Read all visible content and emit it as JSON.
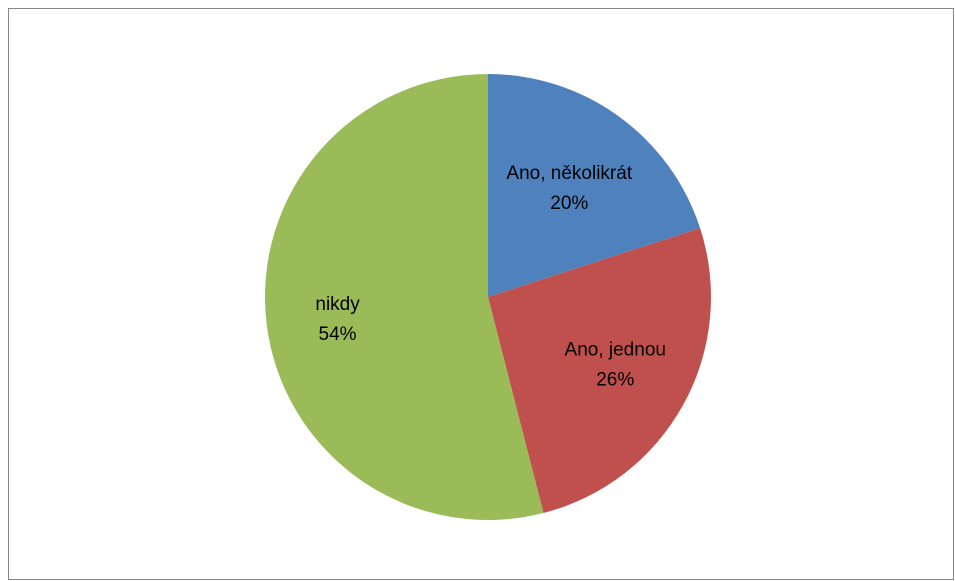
{
  "chart_data": {
    "type": "pie",
    "categories": [
      "Ano, několikrát",
      "Ano, jednou",
      "nikdy"
    ],
    "values": [
      20,
      26,
      54
    ],
    "value_labels": [
      "20%",
      "26%",
      "54%"
    ],
    "colors": [
      "#4f81bd",
      "#c0504d",
      "#9bbb59"
    ],
    "labels_position": "inside",
    "legend": "none"
  }
}
